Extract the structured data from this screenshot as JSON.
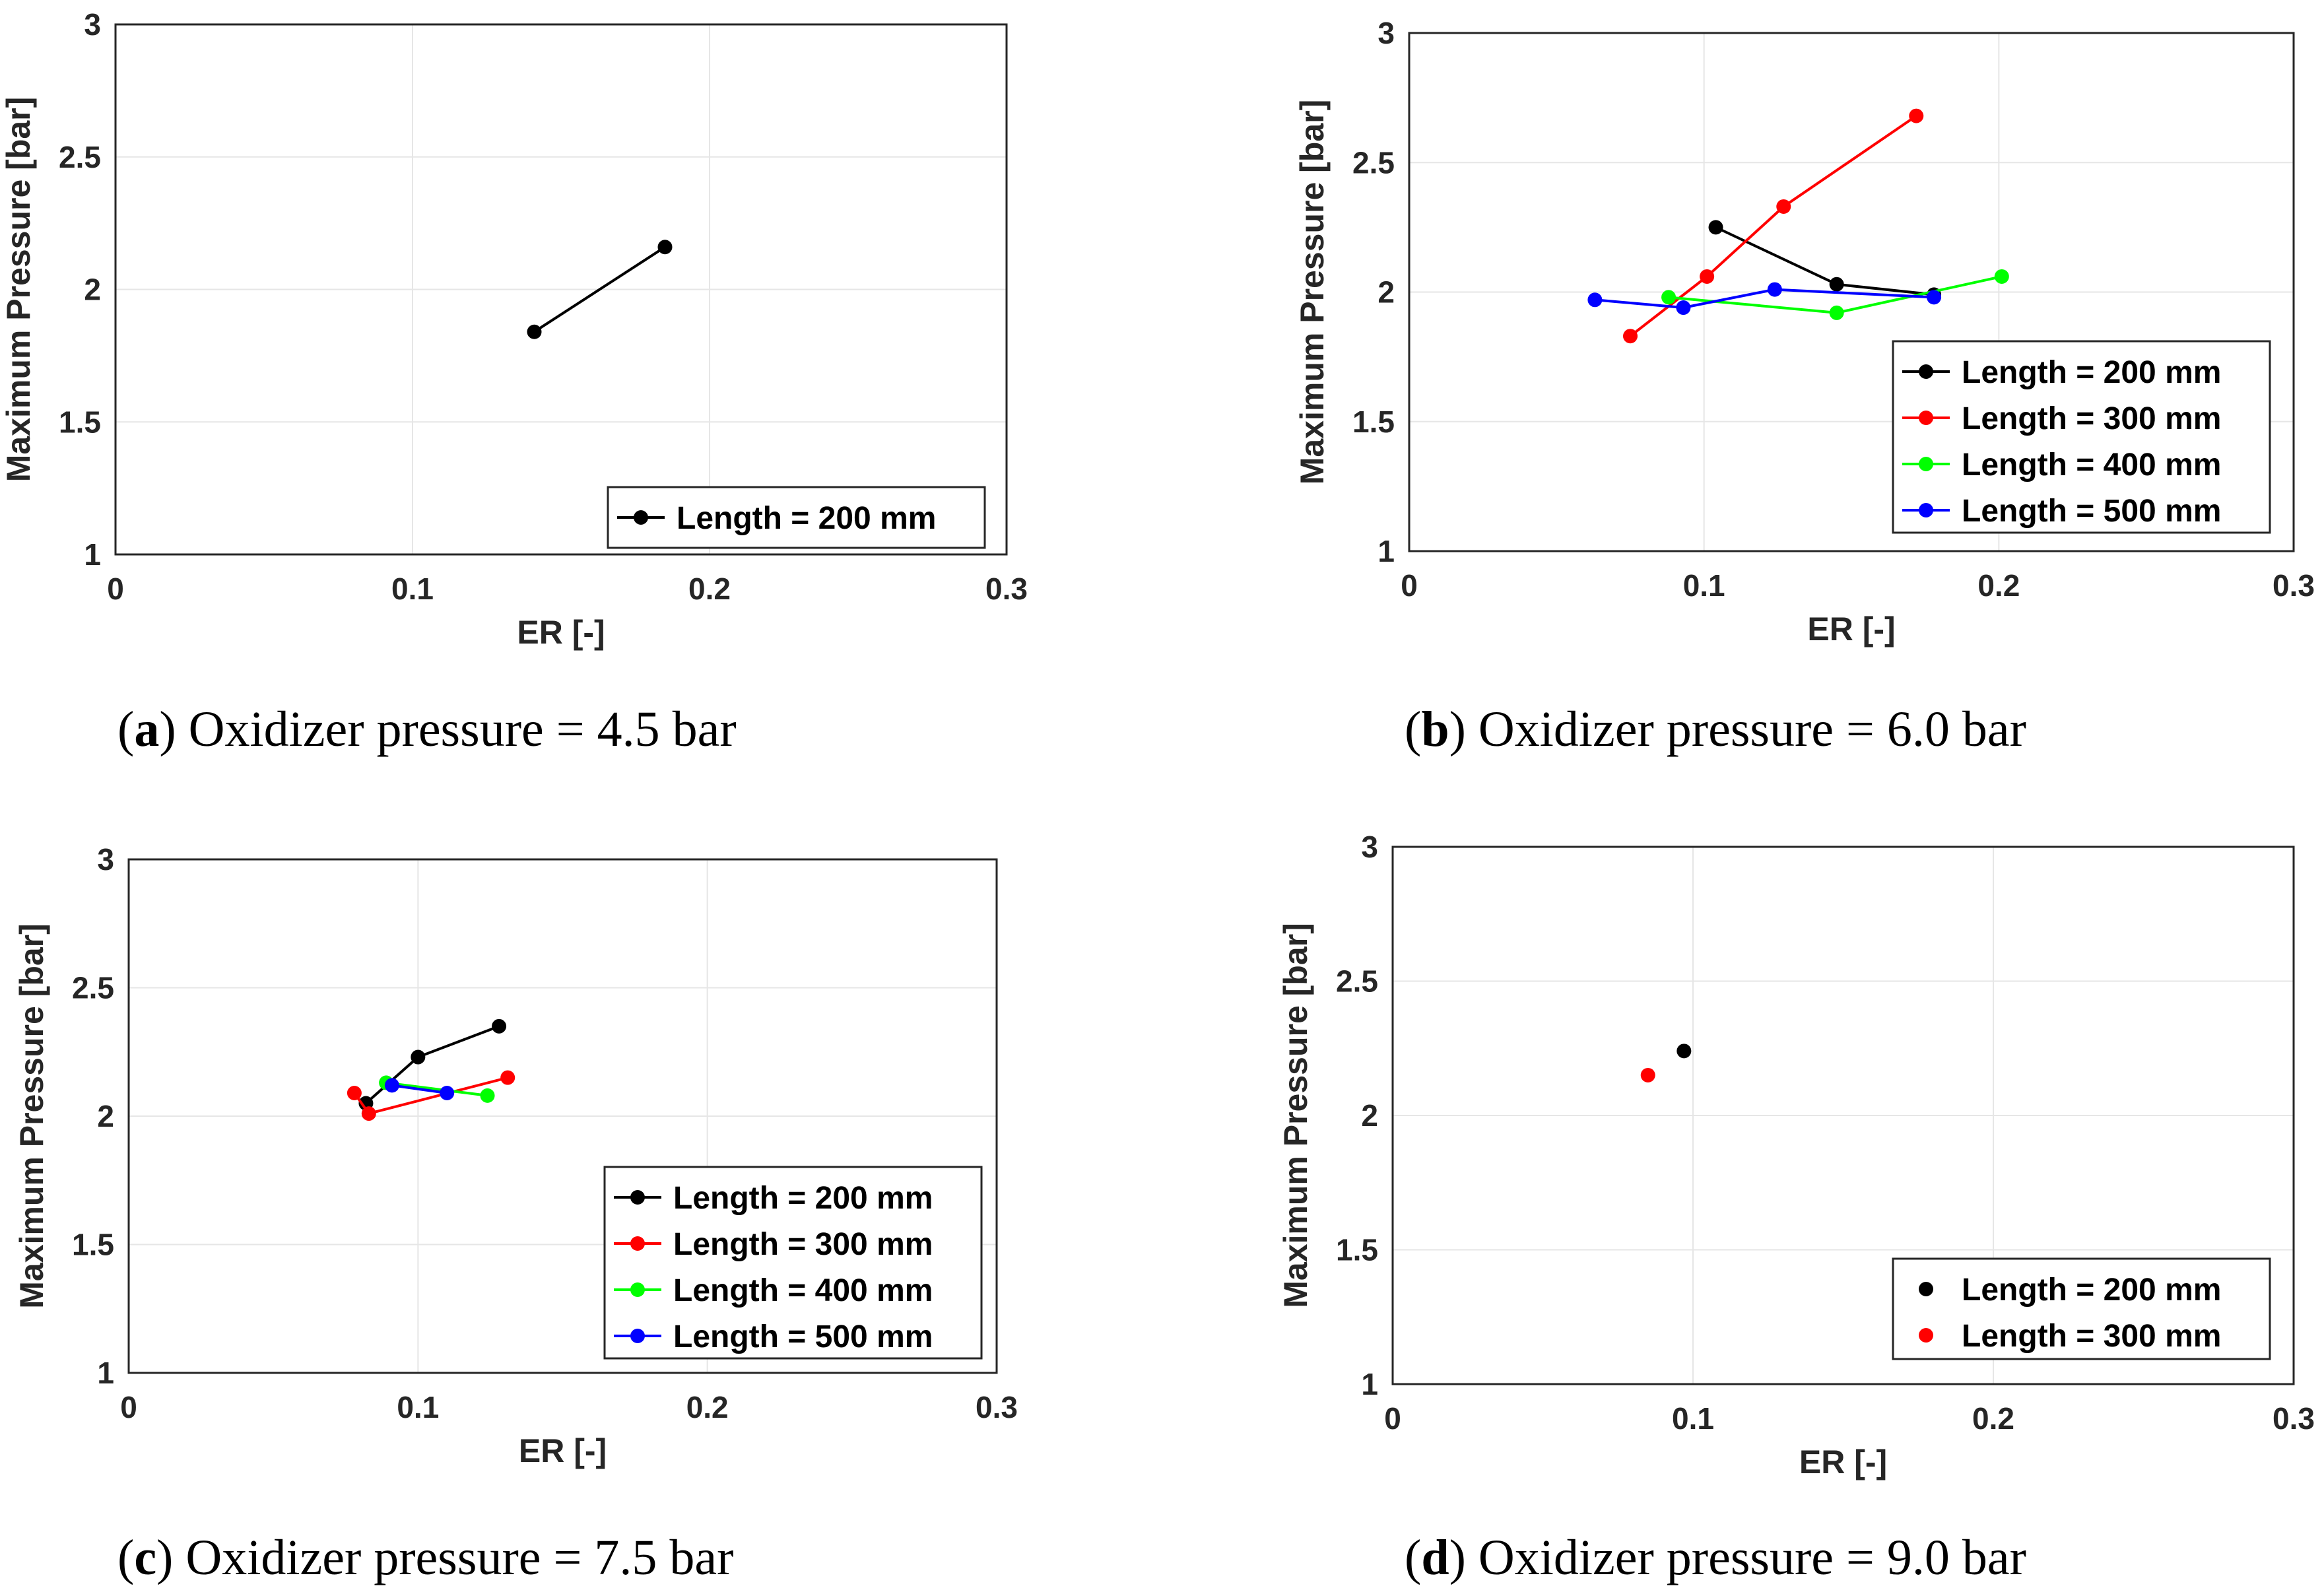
{
  "chart_data": [
    {
      "type": "line",
      "panel": "a",
      "caption": "Oxidizer pressure = 4.5 bar",
      "xlabel": "ER [-]",
      "ylabel": "Maximum Pressure [bar]",
      "xlim": [
        0,
        0.3
      ],
      "ylim": [
        1,
        3
      ],
      "xticks": [
        "0",
        "0.1",
        "0.2",
        "0.3"
      ],
      "yticks": [
        "1",
        "1.5",
        "2",
        "2.5",
        "3"
      ],
      "legend_position": "bottom-right",
      "series": [
        {
          "name": "Length = 200 mm",
          "color": "#000000",
          "x": [
            0.141,
            0.185
          ],
          "y": [
            1.84,
            2.16
          ]
        }
      ]
    },
    {
      "type": "line",
      "panel": "b",
      "caption": "Oxidizer pressure = 6.0 bar",
      "xlabel": "ER [-]",
      "ylabel": "Maximum Pressure [bar]",
      "xlim": [
        0,
        0.3
      ],
      "ylim": [
        1,
        3
      ],
      "xticks": [
        "0",
        "0.1",
        "0.2",
        "0.3"
      ],
      "yticks": [
        "1",
        "1.5",
        "2",
        "2.5",
        "3"
      ],
      "legend_position": "bottom-right",
      "series": [
        {
          "name": "Length = 200 mm",
          "color": "#000000",
          "x": [
            0.104,
            0.145,
            0.178
          ],
          "y": [
            2.25,
            2.03,
            1.99
          ]
        },
        {
          "name": "Length = 300 mm",
          "color": "#ff0000",
          "x": [
            0.075,
            0.101,
            0.127,
            0.172
          ],
          "y": [
            1.83,
            2.06,
            2.33,
            2.68
          ]
        },
        {
          "name": "Length = 400 mm",
          "color": "#00ff00",
          "x": [
            0.088,
            0.145,
            0.201
          ],
          "y": [
            1.98,
            1.92,
            2.06
          ]
        },
        {
          "name": "Length = 500 mm",
          "color": "#0000ff",
          "x": [
            0.063,
            0.093,
            0.124,
            0.178
          ],
          "y": [
            1.97,
            1.94,
            2.01,
            1.98
          ]
        }
      ]
    },
    {
      "type": "line",
      "panel": "c",
      "caption": "Oxidizer pressure = 7.5 bar",
      "xlabel": "ER [-]",
      "ylabel": "Maximum Pressure [bar]",
      "xlim": [
        0,
        0.3
      ],
      "ylim": [
        1,
        3
      ],
      "xticks": [
        "0",
        "0.1",
        "0.2",
        "0.3"
      ],
      "yticks": [
        "1",
        "1.5",
        "2",
        "2.5",
        "3"
      ],
      "legend_position": "bottom-right",
      "series": [
        {
          "name": "Length = 200 mm",
          "color": "#000000",
          "x": [
            0.082,
            0.1,
            0.128
          ],
          "y": [
            2.05,
            2.23,
            2.35
          ]
        },
        {
          "name": "Length = 300 mm",
          "color": "#ff0000",
          "x": [
            0.078,
            0.083,
            0.131
          ],
          "y": [
            2.09,
            2.01,
            2.15
          ]
        },
        {
          "name": "Length = 400 mm",
          "color": "#00ff00",
          "x": [
            0.089,
            0.124
          ],
          "y": [
            2.13,
            2.08
          ]
        },
        {
          "name": "Length = 500 mm",
          "color": "#0000ff",
          "x": [
            0.091,
            0.11
          ],
          "y": [
            2.12,
            2.09
          ]
        }
      ]
    },
    {
      "type": "scatter",
      "panel": "d",
      "caption": "Oxidizer pressure = 9.0 bar",
      "xlabel": "ER [-]",
      "ylabel": "Maximum Pressure [bar]",
      "xlim": [
        0,
        0.3
      ],
      "ylim": [
        1,
        3
      ],
      "xticks": [
        "0",
        "0.1",
        "0.2",
        "0.3"
      ],
      "yticks": [
        "1",
        "1.5",
        "2",
        "2.5",
        "3"
      ],
      "legend_position": "bottom-right",
      "series": [
        {
          "name": "Length = 200 mm",
          "color": "#000000",
          "x": [
            0.097
          ],
          "y": [
            2.24
          ]
        },
        {
          "name": "Length = 300 mm",
          "color": "#ff0000",
          "x": [
            0.085
          ],
          "y": [
            2.15
          ]
        }
      ]
    }
  ]
}
